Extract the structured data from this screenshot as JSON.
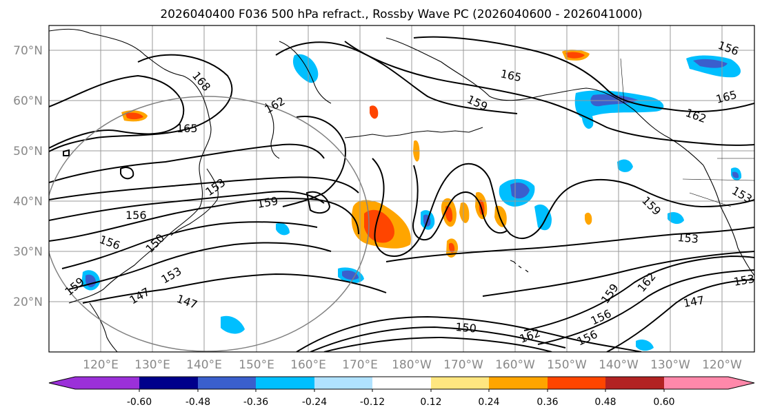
{
  "title": "2026040400 F036 500 hPa refract., Rossby Wave PC (2026040600 - 2026041000)",
  "map": {
    "lon_labels": [
      "120°E",
      "130°E",
      "140°E",
      "150°E",
      "160°E",
      "170°E",
      "180°W",
      "170°W",
      "160°W",
      "150°W",
      "140°W",
      "130°W",
      "120°W"
    ],
    "lat_labels": [
      "70°N",
      "60°N",
      "50°N",
      "40°N",
      "30°N",
      "20°N"
    ],
    "contour_labels": [
      {
        "text": "168"
      },
      {
        "text": "165"
      },
      {
        "text": "165"
      },
      {
        "text": "162"
      },
      {
        "text": "159"
      },
      {
        "text": "162"
      },
      {
        "text": "165"
      },
      {
        "text": "153"
      },
      {
        "text": "159"
      },
      {
        "text": "156"
      },
      {
        "text": "156"
      },
      {
        "text": "150"
      },
      {
        "text": "153"
      },
      {
        "text": "147"
      },
      {
        "text": "147"
      },
      {
        "text": "159"
      },
      {
        "text": "153"
      },
      {
        "text": "159"
      },
      {
        "text": "162"
      },
      {
        "text": "147"
      },
      {
        "text": "156"
      },
      {
        "text": "156"
      },
      {
        "text": "150"
      },
      {
        "text": "162"
      },
      {
        "text": "153"
      },
      {
        "text": "156"
      },
      {
        "text": "153"
      },
      {
        "text": "159"
      }
    ]
  },
  "colorbar": {
    "colors": [
      "#9b30d9",
      "#00008b",
      "#3a5fcd",
      "#00bfff",
      "#b0e2ff",
      "#ffffff",
      "#ffe680",
      "#ffa500",
      "#ff4500",
      "#b22222",
      "#ff88aa"
    ],
    "tick_labels": [
      "-0.60",
      "-0.48",
      "-0.36",
      "-0.24",
      "-0.12",
      "0.12",
      "0.24",
      "0.36",
      "0.48",
      "0.60"
    ]
  }
}
